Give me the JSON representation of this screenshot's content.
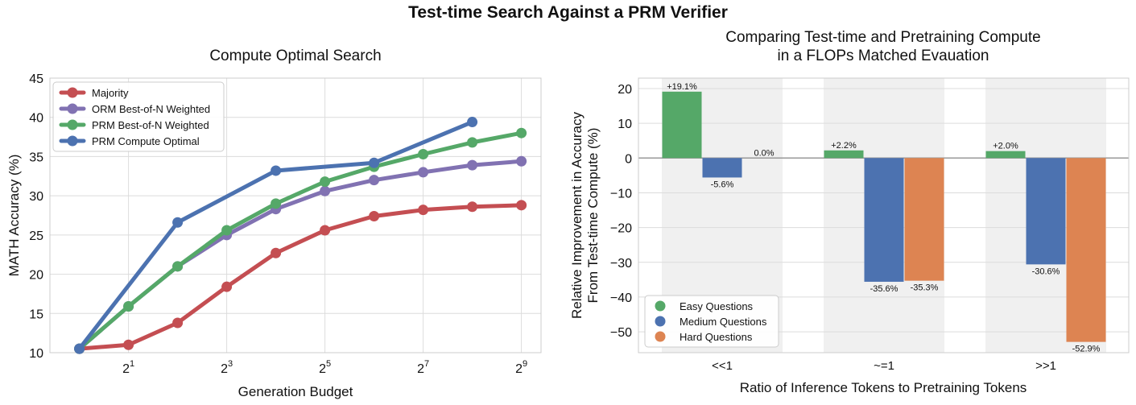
{
  "figure_title": "Test-time Search Against a PRM Verifier",
  "chart_data": [
    {
      "type": "line",
      "title": "Compute Optimal Search",
      "xlabel": "Generation Budget",
      "ylabel": "MATH Accuracy (%)",
      "x_scale": "log2",
      "x": [
        1,
        2,
        4,
        8,
        16,
        32,
        64,
        128,
        256,
        512
      ],
      "xticks": [
        {
          "value": 2,
          "base": "2",
          "exp": "1"
        },
        {
          "value": 8,
          "base": "2",
          "exp": "3"
        },
        {
          "value": 32,
          "base": "2",
          "exp": "5"
        },
        {
          "value": 128,
          "base": "2",
          "exp": "7"
        },
        {
          "value": 512,
          "base": "2",
          "exp": "9"
        }
      ],
      "ylim": [
        10,
        45
      ],
      "yticks": [
        "10",
        "15",
        "20",
        "25",
        "30",
        "35",
        "40",
        "45"
      ],
      "grid": true,
      "legend_position": "upper-left",
      "series": [
        {
          "name": "Majority",
          "color": "#c44e52",
          "values": [
            10.5,
            11.0,
            13.8,
            18.4,
            22.7,
            25.6,
            27.4,
            28.2,
            28.6,
            28.8
          ]
        },
        {
          "name": "ORM Best-of-N Weighted",
          "color": "#8172b2",
          "values": [
            10.5,
            15.9,
            21.0,
            25.0,
            28.3,
            30.6,
            32.0,
            33.0,
            33.9,
            34.4
          ]
        },
        {
          "name": "PRM Best-of-N Weighted",
          "color": "#55a868",
          "values": [
            10.5,
            15.9,
            21.0,
            25.6,
            29.0,
            31.8,
            33.7,
            35.3,
            36.8,
            38.0
          ]
        },
        {
          "name": "PRM Compute Optimal",
          "color": "#4c72b0",
          "x": [
            1,
            4,
            16,
            64,
            256
          ],
          "values": [
            10.5,
            26.6,
            33.2,
            34.2,
            39.4
          ]
        }
      ]
    },
    {
      "type": "bar",
      "title": [
        "Comparing Test-time and Pretraining Compute",
        "in a FLOPs Matched Evauation"
      ],
      "xlabel": "Ratio of Inference Tokens to Pretraining Tokens",
      "ylabel": [
        "Relative Improvement in Accuracy",
        "From Test-time Compute (%)"
      ],
      "categories": [
        "<<1",
        "~=1",
        ">>1"
      ],
      "ylim": [
        -56,
        23
      ],
      "yticks": [
        "20",
        "10",
        "0",
        "−10",
        "−20",
        "−30",
        "−40",
        "−50"
      ],
      "grid": true,
      "legend_position": "lower-left",
      "series": [
        {
          "name": "Easy Questions",
          "color": "#55a868",
          "values": [
            19.1,
            2.2,
            2.0
          ],
          "labels": [
            "+19.1%",
            "+2.2%",
            "+2.0%"
          ]
        },
        {
          "name": "Medium Questions",
          "color": "#4c72b0",
          "values": [
            -5.6,
            -35.6,
            -30.6
          ],
          "labels": [
            "-5.6%",
            "-35.6%",
            "-30.6%"
          ]
        },
        {
          "name": "Hard Questions",
          "color": "#dd8452",
          "values": [
            0.0,
            -35.3,
            -52.9
          ],
          "labels": [
            "0.0%",
            "-35.3%",
            "-52.9%"
          ]
        }
      ]
    }
  ]
}
